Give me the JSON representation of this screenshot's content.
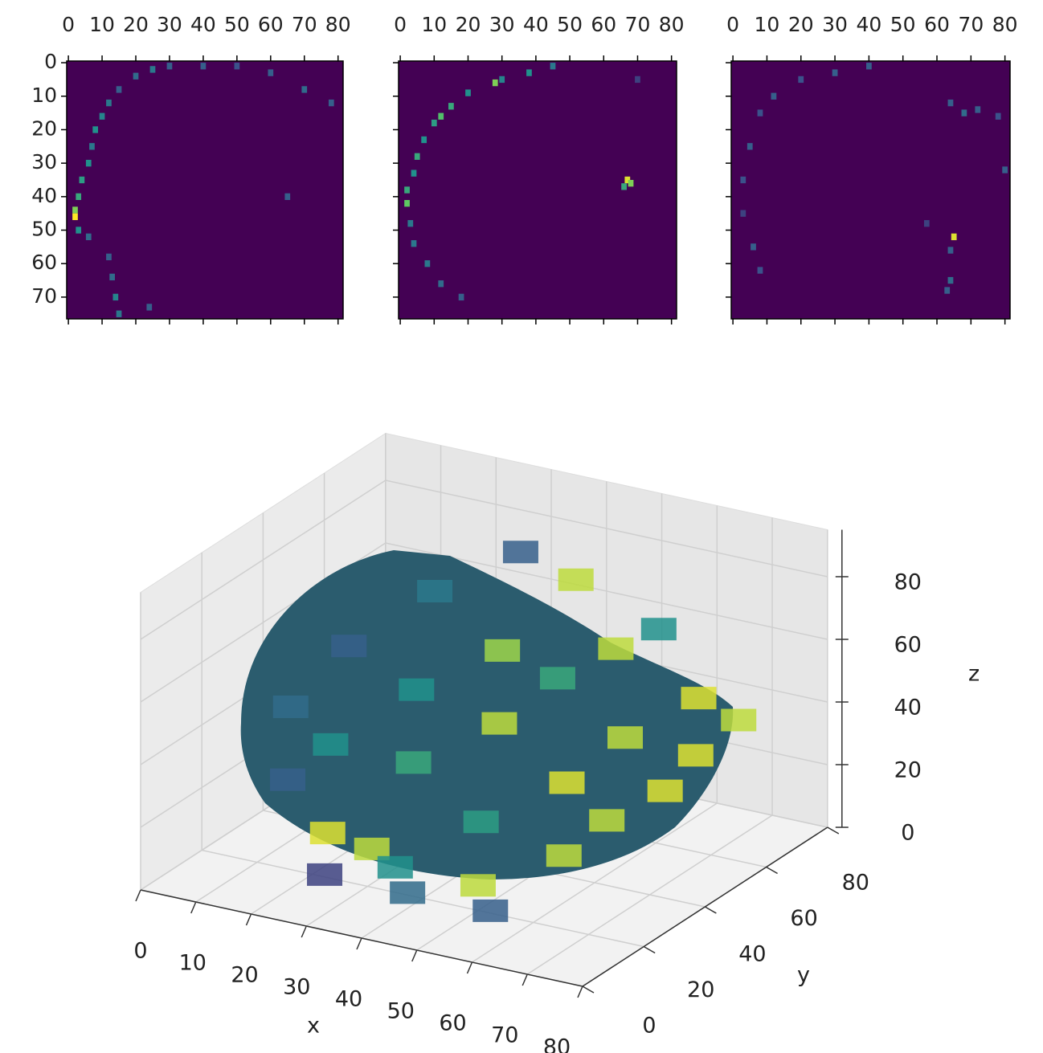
{
  "chart_data": [
    {
      "type": "heatmap",
      "xlim": [
        -0.5,
        81.5
      ],
      "ylim": [
        76.5,
        -0.5
      ],
      "xticks": [
        0,
        10,
        20,
        30,
        40,
        50,
        60,
        70,
        80
      ],
      "yticks": [
        0,
        10,
        20,
        30,
        40,
        50,
        60,
        70
      ],
      "show_ytick_labels": true,
      "colormap": "viridis",
      "clim": [
        0,
        1
      ],
      "points": {
        "x": [
          30,
          25,
          20,
          15,
          12,
          10,
          8,
          7,
          6,
          4,
          3,
          2,
          2,
          3,
          6,
          12,
          13,
          14,
          15,
          40,
          50,
          60,
          70,
          78,
          65,
          24
        ],
        "y": [
          1,
          2,
          4,
          8,
          12,
          16,
          20,
          25,
          30,
          35,
          40,
          44,
          46,
          50,
          52,
          58,
          64,
          70,
          75,
          1,
          1,
          3,
          8,
          12,
          40,
          73
        ],
        "v": [
          0.3,
          0.4,
          0.35,
          0.3,
          0.4,
          0.45,
          0.5,
          0.4,
          0.5,
          0.55,
          0.6,
          0.8,
          1.0,
          0.5,
          0.35,
          0.3,
          0.35,
          0.45,
          0.4,
          0.3,
          0.25,
          0.3,
          0.35,
          0.3,
          0.3,
          0.3
        ]
      }
    },
    {
      "type": "heatmap",
      "xlim": [
        -0.5,
        81.5
      ],
      "ylim": [
        76.5,
        -0.5
      ],
      "xticks": [
        0,
        10,
        20,
        30,
        40,
        50,
        60,
        70,
        80
      ],
      "yticks": [
        0,
        10,
        20,
        30,
        40,
        50,
        60,
        70
      ],
      "show_ytick_labels": false,
      "colormap": "viridis",
      "clim": [
        0,
        1
      ],
      "points": {
        "x": [
          45,
          38,
          30,
          28,
          20,
          15,
          12,
          10,
          7,
          5,
          4,
          2,
          2,
          3,
          4,
          8,
          12,
          18,
          67,
          66,
          68,
          70
        ],
        "y": [
          1,
          3,
          5,
          6,
          9,
          13,
          16,
          18,
          23,
          28,
          33,
          38,
          42,
          48,
          54,
          60,
          66,
          70,
          35,
          37,
          36,
          5
        ],
        "v": [
          0.4,
          0.5,
          0.45,
          0.8,
          0.5,
          0.6,
          0.7,
          0.55,
          0.5,
          0.6,
          0.5,
          0.6,
          0.75,
          0.4,
          0.4,
          0.4,
          0.35,
          0.3,
          0.95,
          0.6,
          0.8,
          0.2
        ]
      }
    },
    {
      "type": "heatmap",
      "xlim": [
        -0.5,
        81.5
      ],
      "ylim": [
        76.5,
        -0.5
      ],
      "xticks": [
        0,
        10,
        20,
        30,
        40,
        50,
        60,
        70,
        80
      ],
      "yticks": [
        0,
        10,
        20,
        30,
        40,
        50,
        60,
        70
      ],
      "show_ytick_labels": false,
      "colormap": "viridis",
      "clim": [
        0,
        1
      ],
      "points": {
        "x": [
          40,
          30,
          20,
          12,
          8,
          5,
          3,
          3,
          6,
          8,
          64,
          68,
          72,
          78,
          80,
          65,
          64,
          64,
          63,
          57
        ],
        "y": [
          1,
          3,
          5,
          10,
          15,
          25,
          35,
          45,
          55,
          62,
          12,
          15,
          14,
          16,
          32,
          52,
          56,
          65,
          68,
          48
        ],
        "v": [
          0.3,
          0.3,
          0.25,
          0.3,
          0.25,
          0.3,
          0.25,
          0.2,
          0.3,
          0.25,
          0.3,
          0.35,
          0.3,
          0.25,
          0.3,
          0.95,
          0.3,
          0.35,
          0.3,
          0.2
        ]
      }
    },
    {
      "type": "voxels",
      "xlabel": "x",
      "ylabel": "y",
      "zlabel": "z",
      "xlim": [
        0,
        80
      ],
      "ylim": [
        0,
        80
      ],
      "zlim": [
        0,
        95
      ],
      "xticks": [
        0,
        10,
        20,
        30,
        40,
        50,
        60,
        70,
        80
      ],
      "yticks": [
        0,
        20,
        40,
        60,
        80
      ],
      "zticks": [
        0,
        20,
        40,
        60,
        80
      ],
      "colormap": "viridis",
      "clim": [
        0,
        1
      ],
      "points": {
        "x": [
          30,
          40,
          55,
          50,
          65,
          75,
          70,
          20,
          35,
          45,
          60,
          70,
          10,
          25,
          40,
          55,
          65,
          5,
          15,
          30,
          45,
          60,
          10,
          20,
          28,
          35,
          50,
          40,
          25,
          55
        ],
        "y": [
          70,
          70,
          70,
          65,
          65,
          60,
          55,
          60,
          55,
          55,
          50,
          45,
          50,
          45,
          45,
          40,
          35,
          40,
          35,
          35,
          30,
          30,
          30,
          25,
          25,
          20,
          20,
          15,
          15,
          15
        ],
        "z": [
          75,
          70,
          60,
          55,
          45,
          45,
          35,
          65,
          55,
          50,
          40,
          30,
          50,
          45,
          40,
          30,
          25,
          35,
          30,
          30,
          20,
          15,
          20,
          10,
          8,
          8,
          8,
          5,
          5,
          5
        ],
        "v": [
          0.3,
          0.9,
          0.5,
          0.9,
          0.95,
          0.9,
          0.95,
          0.4,
          0.85,
          0.6,
          0.9,
          0.95,
          0.3,
          0.5,
          0.9,
          0.95,
          0.9,
          0.35,
          0.5,
          0.6,
          0.55,
          0.9,
          0.3,
          0.95,
          0.9,
          0.5,
          0.9,
          0.35,
          0.2,
          0.3
        ]
      }
    }
  ]
}
